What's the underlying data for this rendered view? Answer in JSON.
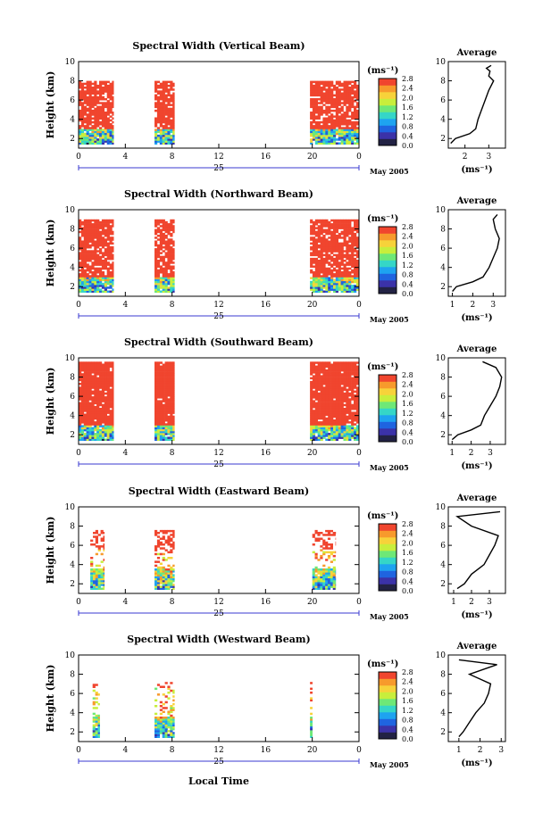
{
  "chart_data": {
    "type": "heatmap",
    "figure_xlabel": "Local Time",
    "x_ticks": [
      "0",
      "4",
      "8",
      "12",
      "16",
      "20",
      "0"
    ],
    "xlim": [
      0,
      24
    ],
    "date_ticks": [
      "25"
    ],
    "date_tail": "May 2005",
    "ylabel": "Height (km)",
    "y_ticks": [
      "2",
      "4",
      "6",
      "8",
      "10"
    ],
    "ylim": [
      1,
      10
    ],
    "colorbar_unit": "(ms⁻¹)",
    "colorbar_ticks": [
      "0.0",
      "0.4",
      "0.8",
      "1.2",
      "1.6",
      "2.0",
      "2.4",
      "2.8"
    ],
    "colorbar_range": [
      0,
      2.8
    ],
    "colormap": [
      "#222244",
      "#3b32a8",
      "#1f64e0",
      "#1ea3f0",
      "#35d6c7",
      "#6ee877",
      "#c8ee3c",
      "#f7d23a",
      "#f79a2c",
      "#f0452e"
    ],
    "average_title": "Average",
    "average_unit": "(ms⁻¹)",
    "panels": [
      {
        "title": "Spectral Width (Vertical Beam)",
        "segments": [
          {
            "t0": 0,
            "t1": 3
          },
          {
            "t0": 6.5,
            "t1": 8.2
          },
          {
            "t0": 19.8,
            "t1": 24
          }
        ],
        "low_top": 3,
        "high_bottom": 3,
        "high_top": 8,
        "density": 0.82,
        "avg_ticks": [
          "2",
          "3"
        ],
        "avg_xlim": [
          1.3,
          3.7
        ],
        "average_profile": [
          {
            "h": 1.5,
            "v": 1.4
          },
          {
            "h": 2.0,
            "v": 1.6
          },
          {
            "h": 2.5,
            "v": 2.2
          },
          {
            "h": 3.0,
            "v": 2.45
          },
          {
            "h": 4.0,
            "v": 2.55
          },
          {
            "h": 5.0,
            "v": 2.7
          },
          {
            "h": 6.0,
            "v": 2.85
          },
          {
            "h": 7.0,
            "v": 3.0
          },
          {
            "h": 8.0,
            "v": 3.2
          },
          {
            "h": 8.5,
            "v": 3.0
          },
          {
            "h": 9.0,
            "v": 3.05
          },
          {
            "h": 9.3,
            "v": 2.9
          },
          {
            "h": 9.6,
            "v": 3.1
          }
        ]
      },
      {
        "title": "Spectral Width (Northward Beam)",
        "segments": [
          {
            "t0": 0,
            "t1": 3
          },
          {
            "t0": 6.5,
            "t1": 8.2
          },
          {
            "t0": 19.8,
            "t1": 24
          }
        ],
        "low_top": 3,
        "high_bottom": 3,
        "high_top": 9,
        "density": 0.85,
        "avg_ticks": [
          "1",
          "2",
          "3"
        ],
        "avg_xlim": [
          0.8,
          3.6
        ],
        "average_profile": [
          {
            "h": 1.5,
            "v": 1.0
          },
          {
            "h": 2.0,
            "v": 1.2
          },
          {
            "h": 2.5,
            "v": 2.0
          },
          {
            "h": 3.0,
            "v": 2.5
          },
          {
            "h": 4.0,
            "v": 2.8
          },
          {
            "h": 5.0,
            "v": 3.0
          },
          {
            "h": 6.0,
            "v": 3.2
          },
          {
            "h": 7.0,
            "v": 3.3
          },
          {
            "h": 8.0,
            "v": 3.1
          },
          {
            "h": 9.0,
            "v": 3.0
          },
          {
            "h": 9.5,
            "v": 3.2
          }
        ]
      },
      {
        "title": "Spectral Width (Southward Beam)",
        "segments": [
          {
            "t0": 0,
            "t1": 3
          },
          {
            "t0": 6.5,
            "t1": 8.2
          },
          {
            "t0": 19.8,
            "t1": 24
          }
        ],
        "low_top": 3,
        "high_bottom": 3,
        "high_top": 9.5,
        "density": 0.95,
        "avg_ticks": [
          "1",
          "2",
          "3"
        ],
        "avg_xlim": [
          0.8,
          3.8
        ],
        "average_profile": [
          {
            "h": 1.5,
            "v": 1.0
          },
          {
            "h": 2.0,
            "v": 1.3
          },
          {
            "h": 2.5,
            "v": 2.0
          },
          {
            "h": 3.0,
            "v": 2.5
          },
          {
            "h": 4.0,
            "v": 2.7
          },
          {
            "h": 5.0,
            "v": 3.0
          },
          {
            "h": 6.0,
            "v": 3.3
          },
          {
            "h": 7.0,
            "v": 3.5
          },
          {
            "h": 8.0,
            "v": 3.6
          },
          {
            "h": 9.0,
            "v": 3.3
          },
          {
            "h": 9.6,
            "v": 2.6
          }
        ]
      },
      {
        "title": "Spectral Width (Eastward Beam)",
        "segments": [
          {
            "t0": 1,
            "t1": 2.2
          },
          {
            "t0": 6.5,
            "t1": 8.2
          },
          {
            "t0": 20,
            "t1": 22
          }
        ],
        "low_top": 3.5,
        "high_bottom": 5.5,
        "high_top": 7.5,
        "density": 0.45,
        "avg_ticks": [
          "1",
          "2",
          "3"
        ],
        "avg_xlim": [
          0.7,
          3.9
        ],
        "average_profile": [
          {
            "h": 1.5,
            "v": 1.2
          },
          {
            "h": 2.0,
            "v": 1.6
          },
          {
            "h": 3.0,
            "v": 2.0
          },
          {
            "h": 4.0,
            "v": 2.7
          },
          {
            "h": 5.0,
            "v": 3.0
          },
          {
            "h": 6.0,
            "v": 3.3
          },
          {
            "h": 7.0,
            "v": 3.5
          },
          {
            "h": 8.0,
            "v": 2.0
          },
          {
            "h": 9.0,
            "v": 1.2
          },
          {
            "h": 9.5,
            "v": 3.6
          }
        ]
      },
      {
        "title": "Spectral Width (Westward Beam)",
        "segments": [
          {
            "t0": 1.2,
            "t1": 1.8
          },
          {
            "t0": 6.5,
            "t1": 8.2
          },
          {
            "t0": 19.8,
            "t1": 20
          }
        ],
        "low_top": 3.5,
        "high_bottom": 6.5,
        "high_top": 7.2,
        "density": 0.3,
        "avg_ticks": [
          "1",
          "2",
          "3"
        ],
        "avg_xlim": [
          0.5,
          3.2
        ],
        "average_profile": [
          {
            "h": 1.5,
            "v": 1.0
          },
          {
            "h": 2.0,
            "v": 1.2
          },
          {
            "h": 3.0,
            "v": 1.5
          },
          {
            "h": 4.0,
            "v": 1.8
          },
          {
            "h": 5.0,
            "v": 2.2
          },
          {
            "h": 6.0,
            "v": 2.4
          },
          {
            "h": 7.0,
            "v": 2.5
          },
          {
            "h": 8.0,
            "v": 1.5
          },
          {
            "h": 9.0,
            "v": 2.8
          },
          {
            "h": 9.5,
            "v": 1.0
          }
        ]
      }
    ]
  }
}
